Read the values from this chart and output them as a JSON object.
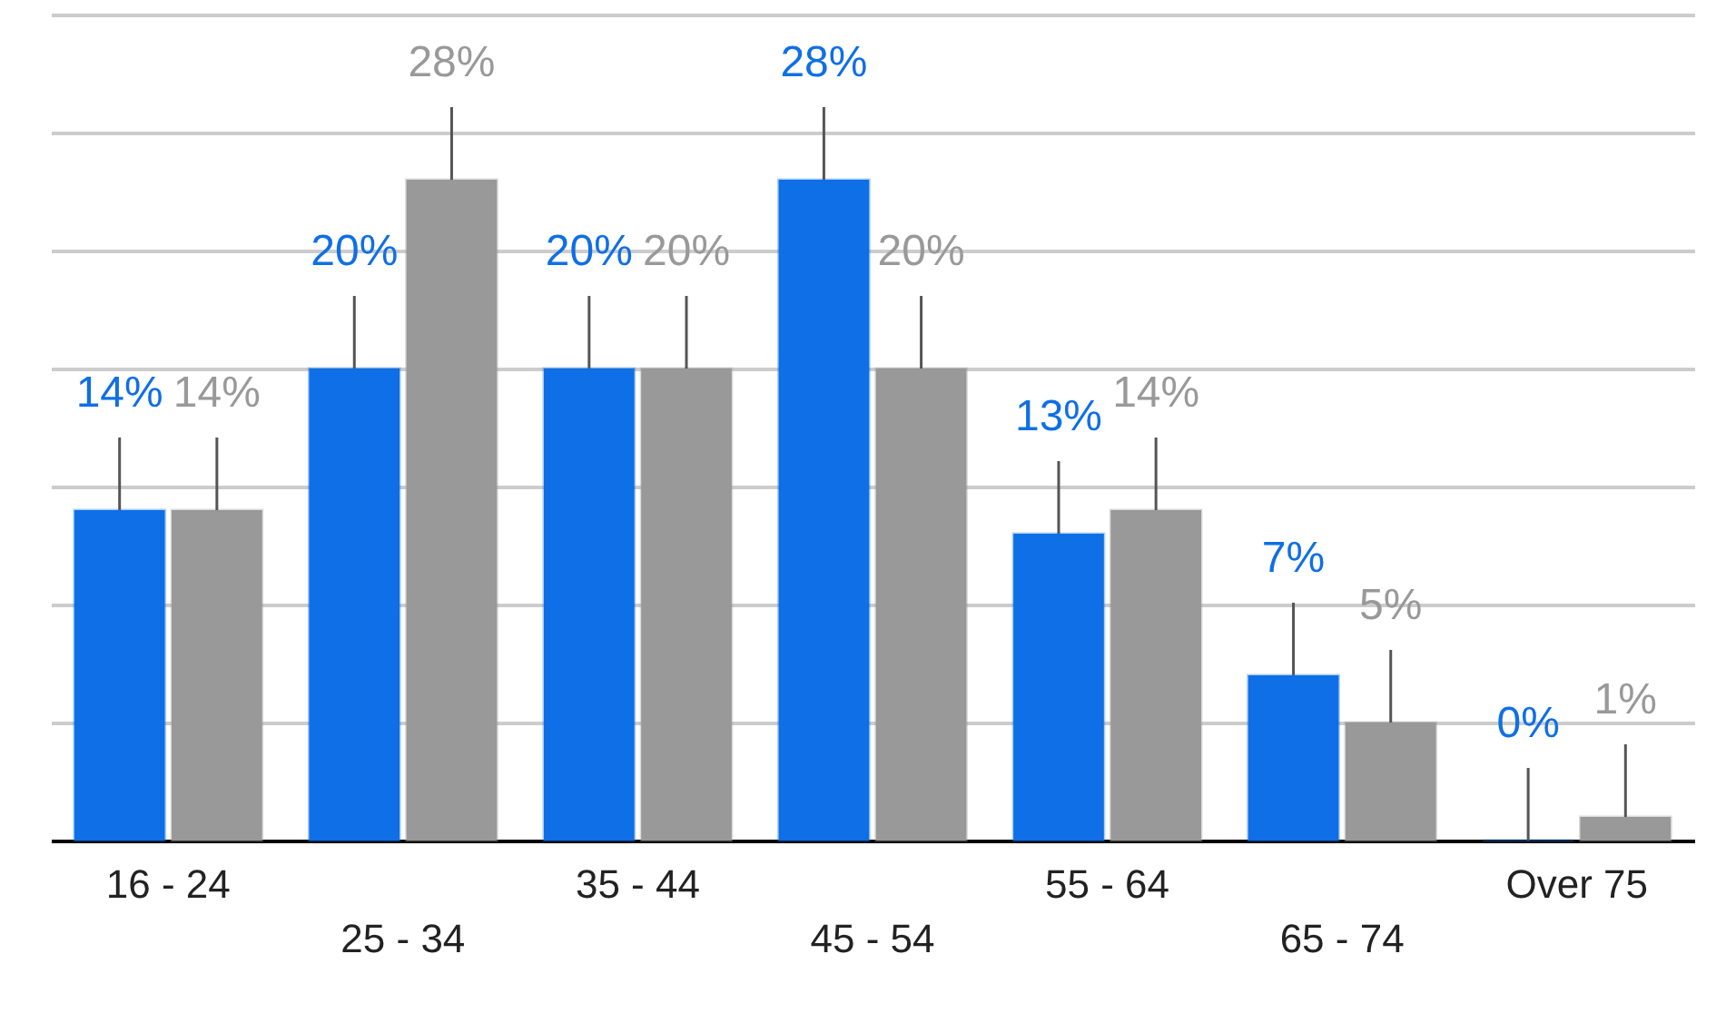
{
  "chart_data": {
    "type": "bar",
    "categories": [
      "16 - 24",
      "25 - 34",
      "35 - 44",
      "45 - 54",
      "55 - 64",
      "65 - 74",
      "Over 75"
    ],
    "series": [
      {
        "color": "#0f6fe6",
        "values": [
          14,
          20,
          20,
          28,
          13,
          7,
          0
        ],
        "value_labels": [
          "14%",
          "20%",
          "20%",
          "28%",
          "13%",
          "7%",
          "0%"
        ]
      },
      {
        "color": "#999999",
        "values": [
          14,
          28,
          20,
          20,
          14,
          5,
          1
        ],
        "value_labels": [
          "14%",
          "28%",
          "20%",
          "20%",
          "14%",
          "5%",
          "1%"
        ]
      }
    ],
    "ylim": [
      0,
      35
    ],
    "yticks": [
      {
        "value": 0,
        "label": null
      },
      {
        "value": 5,
        "label": null
      },
      {
        "value": 10,
        "label": null
      },
      {
        "value": 15,
        "label": null
      },
      {
        "value": 20,
        "label": null
      },
      {
        "value": 25,
        "label": null
      },
      {
        "value": 30,
        "label": null
      },
      {
        "value": 35,
        "label": null
      }
    ],
    "grid": "y",
    "tick_labels": "x",
    "legend": false
  }
}
